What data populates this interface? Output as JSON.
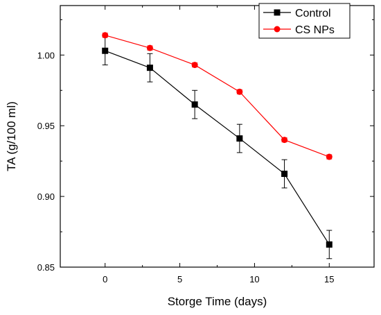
{
  "chart_data": {
    "type": "line",
    "title": "",
    "xlabel": "Storge Time (days)",
    "ylabel": "TA (g/100 ml)",
    "x": [
      0,
      3,
      6,
      9,
      12,
      15
    ],
    "xlim": [
      -3,
      18
    ],
    "ylim": [
      0.85,
      1.035
    ],
    "xticks": [
      0,
      5,
      10,
      15
    ],
    "yticks": [
      0.85,
      0.9,
      0.95,
      1.0
    ],
    "xtick_labels": [
      "0",
      "5",
      "10",
      "15"
    ],
    "ytick_labels": [
      "0.85",
      "0.90",
      "0.95",
      "1.00"
    ],
    "grid": false,
    "legend_position": "top-right",
    "series": [
      {
        "name": "Control",
        "color": "#000000",
        "marker": "square",
        "values": [
          1.003,
          0.991,
          0.965,
          0.941,
          0.916,
          0.866
        ],
        "error": [
          0.01,
          0.01,
          0.01,
          0.01,
          0.01,
          0.01
        ]
      },
      {
        "name": "CS NPs",
        "color": "#ff0000",
        "marker": "circle",
        "values": [
          1.014,
          1.005,
          0.993,
          0.974,
          0.94,
          0.928
        ],
        "error": [
          0.0015,
          0.0015,
          0.0015,
          0.0015,
          0.0015,
          0.0015
        ]
      }
    ]
  }
}
